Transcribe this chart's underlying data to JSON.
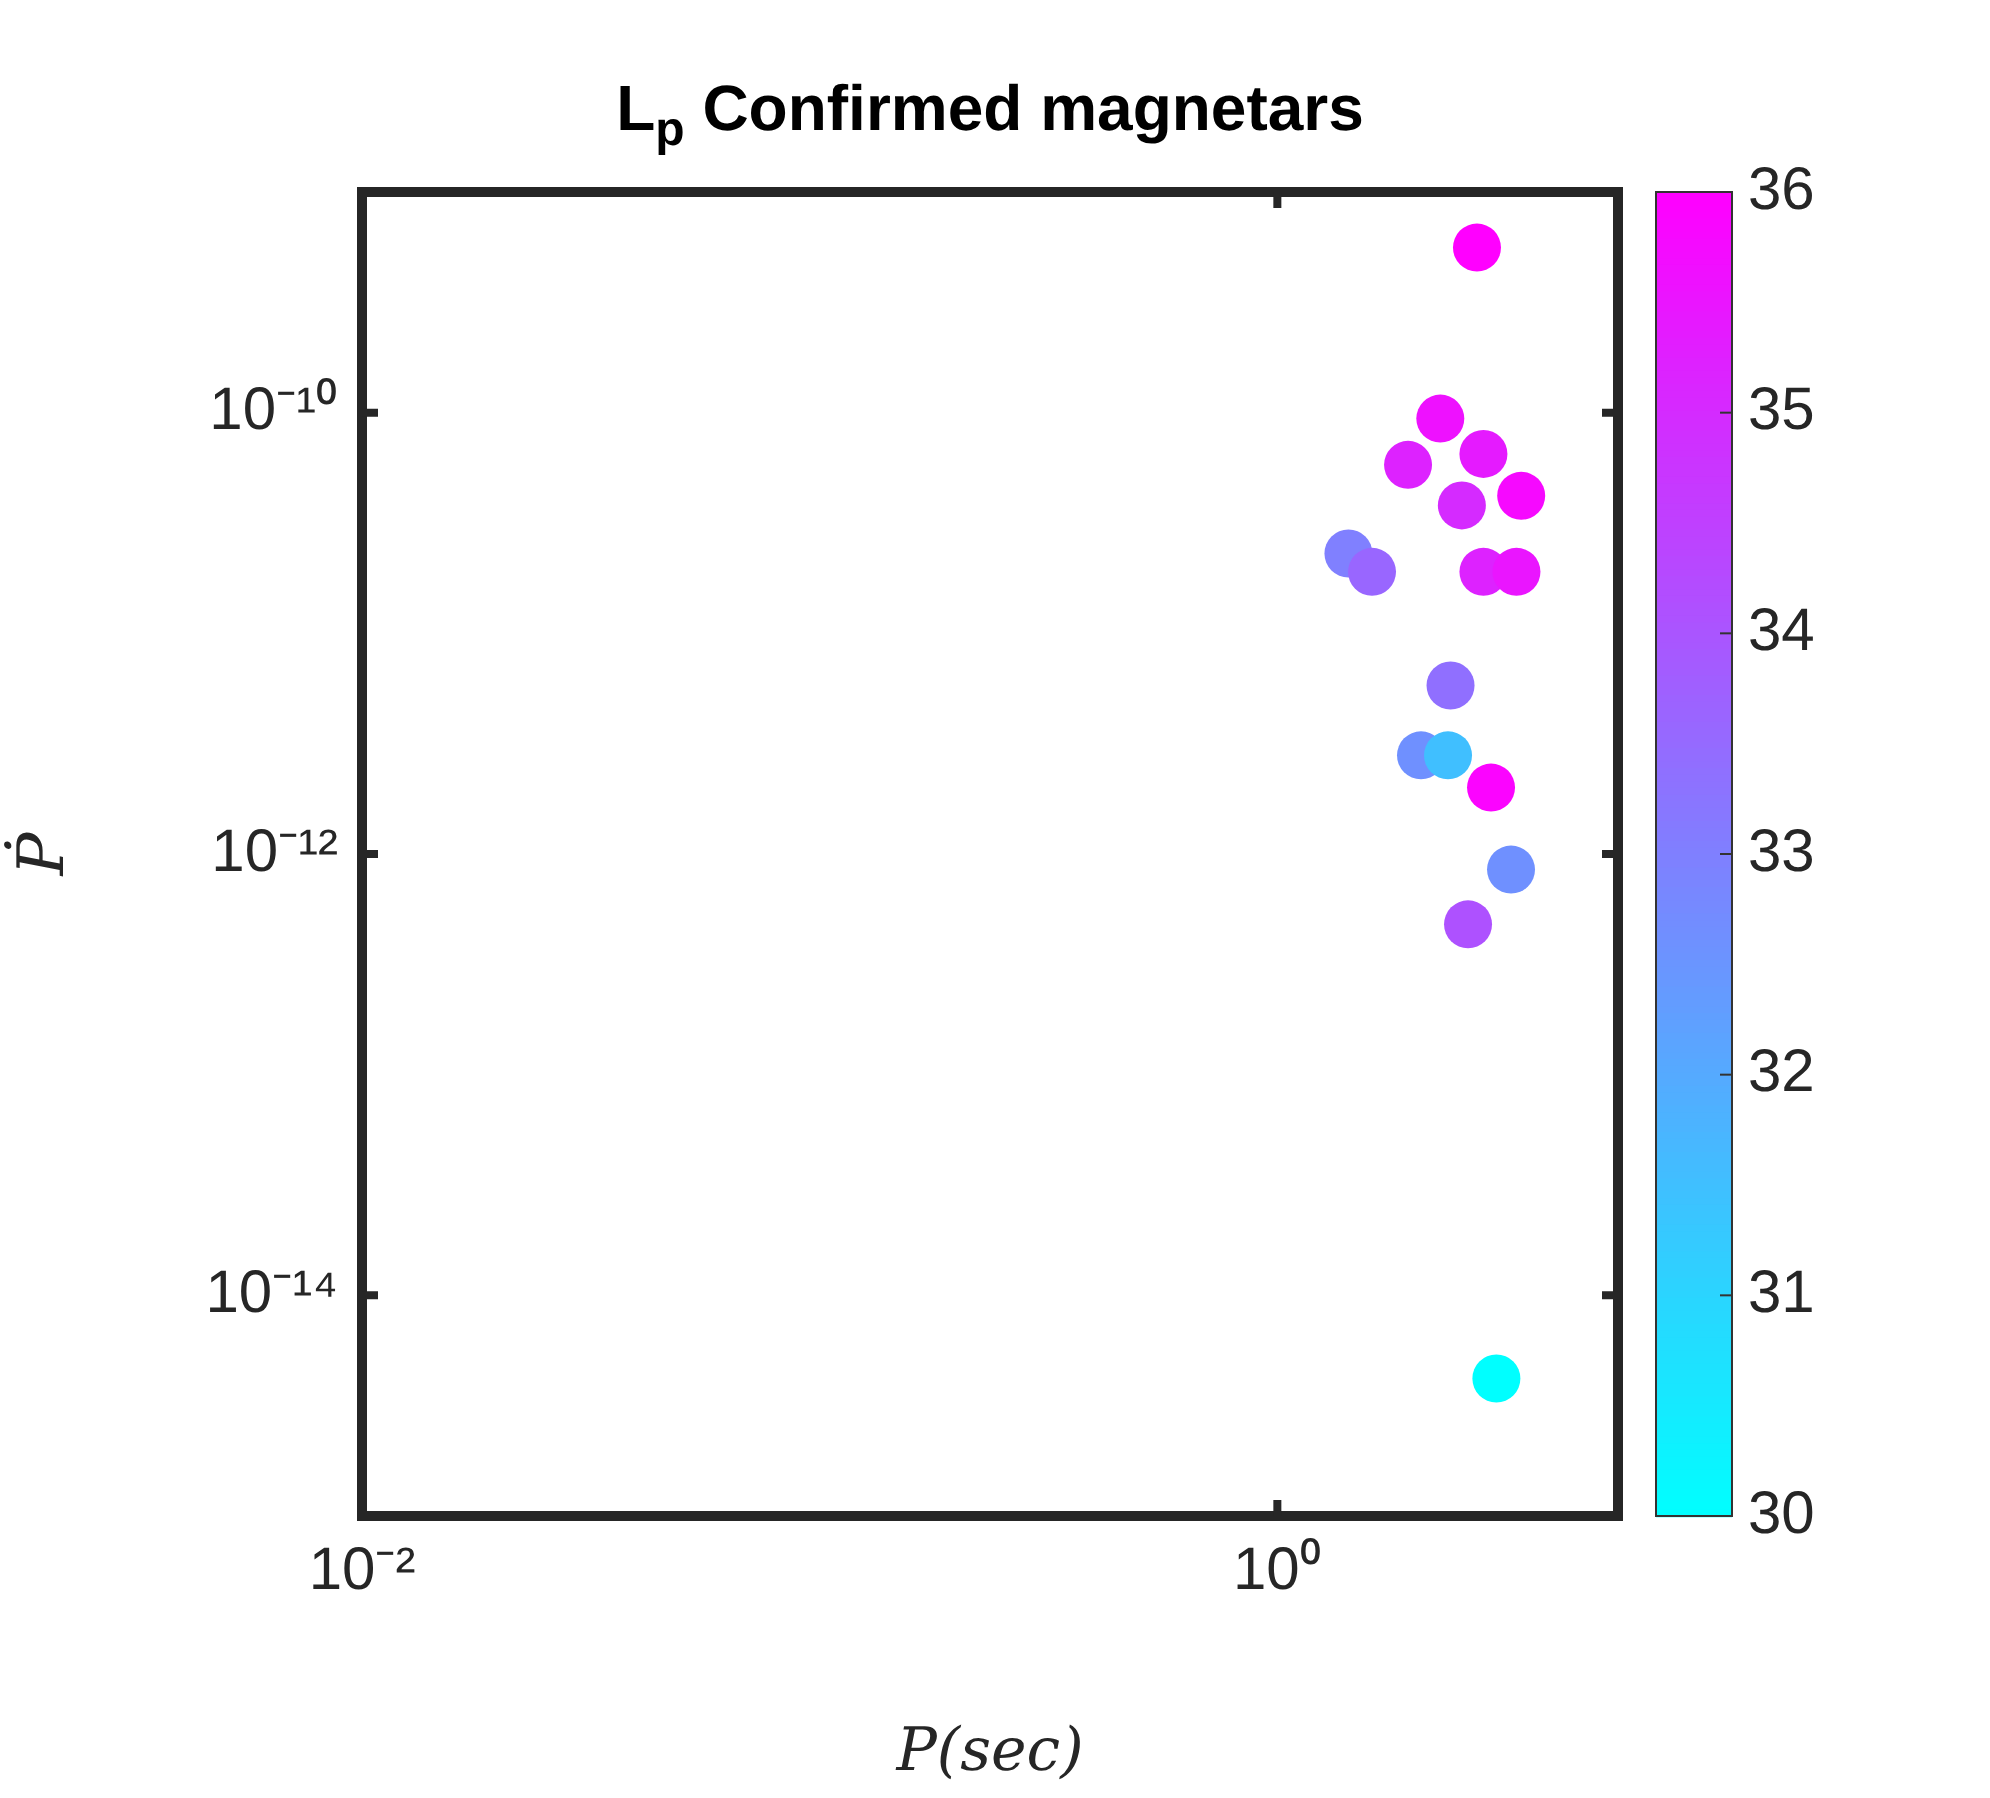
{
  "chart_data": {
    "type": "scatter",
    "title": "L$_{p}$ Confirmed magnetars",
    "xlabel": "P(sec)",
    "ylabel": "Ṗ",
    "log": "xy",
    "x": [
      2.73,
      2.27,
      1.93,
      2.82,
      2.53,
      3.41,
      1.43,
      1.61,
      2.82,
      3.33,
      2.39,
      2.06,
      2.36,
      2.93,
      3.24,
      2.61,
      3.01
    ],
    "values": [
      5.6e-10,
      9.4e-11,
      5.8e-11,
      6.5e-11,
      3.8e-11,
      4.2e-11,
      2.3e-11,
      1.9e-11,
      1.9e-11,
      1.9e-11,
      5.8e-12,
      2.8e-12,
      2.8e-12,
      2e-12,
      8.5e-13,
      4.8e-13,
      4.2e-15
    ],
    "cvalues": [
      36,
      35.6,
      35.2,
      35.4,
      35.0,
      35.8,
      33.0,
      33.6,
      35.2,
      35.5,
      33.4,
      32.6,
      31.5,
      35.9,
      32.6,
      34.1,
      30
    ],
    "clim": [
      30,
      36
    ],
    "cticks": [
      30,
      31,
      32,
      33,
      34,
      35,
      36
    ],
    "xlim": [
      0.01,
      5.55
    ],
    "xticks": [
      {
        "value": 0.01,
        "label": "10⁻²"
      },
      {
        "value": 1,
        "label": "10⁰"
      }
    ],
    "ylim": [
      1e-15,
      1e-09
    ],
    "yticks": [
      {
        "value": 1e-14,
        "label": "10⁻¹⁴"
      },
      {
        "value": 1e-12,
        "label": "10⁻¹²"
      },
      {
        "value": 1e-10,
        "label": "10⁻¹⁰"
      }
    ],
    "grid": false,
    "legend": false,
    "marker": "circle"
  }
}
